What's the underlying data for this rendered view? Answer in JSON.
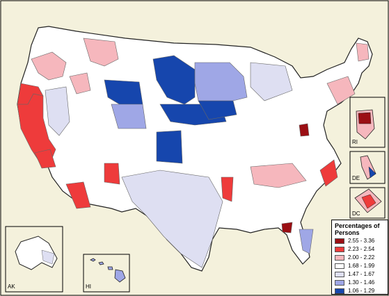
{
  "legend": {
    "title": "Percentages of Persons",
    "classes": [
      {
        "range": "2.55 - 3.36",
        "color": "#9b0f14"
      },
      {
        "range": "2.23 - 2.54",
        "color": "#ee3b3b"
      },
      {
        "range": "2.00 - 2.22",
        "color": "#f6b7bd"
      },
      {
        "range": "1.68 - 1.99",
        "color": "#ffffff"
      },
      {
        "range": "1.47 - 1.67",
        "color": "#dedff2"
      },
      {
        "range": "1.30 - 1.46",
        "color": "#9fa7e6"
      },
      {
        "range": "1.06 - 1.29",
        "color": "#1646ad"
      }
    ]
  },
  "insets": {
    "alaska": "AK",
    "hawaii": "HI",
    "rhode_island": "RI",
    "delaware": "DE",
    "district_of_columbia": "DC"
  },
  "colors": {
    "background": "#f4f1dc",
    "border": "#222222",
    "land_default": "#ffffff"
  }
}
